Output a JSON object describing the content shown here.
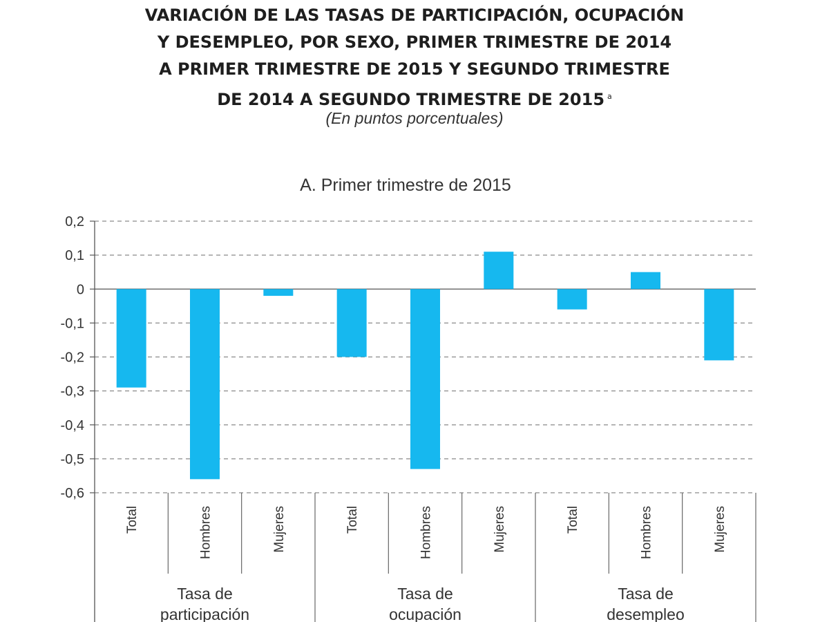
{
  "header": {
    "title_lines": [
      "VARIACIÓN DE LAS TASAS DE PARTICIPACIÓN, OCUPACIÓN",
      "Y DESEMPLEO, POR SEXO, PRIMER TRIMESTRE DE 2014",
      "A PRIMER TRIMESTRE DE 2015 Y SEGUNDO TRIMESTRE",
      "DE 2014 A SEGUNDO TRIMESTRE DE 2015"
    ],
    "title_note": "a",
    "subtitle": "(En puntos porcentuales)"
  },
  "chart_data": {
    "type": "bar",
    "title": "A. Primer trimestre de 2015",
    "categories": [
      "Total",
      "Hombres",
      "Mujeres",
      "Total",
      "Hombres",
      "Mujeres",
      "Total",
      "Hombres",
      "Mujeres"
    ],
    "groups": [
      {
        "label_lines": [
          "Tasa de",
          "participación"
        ],
        "span": 3
      },
      {
        "label_lines": [
          "Tasa de",
          "ocupación"
        ],
        "span": 3
      },
      {
        "label_lines": [
          "Tasa de",
          "desempleo"
        ],
        "span": 3
      }
    ],
    "values": [
      -0.29,
      -0.56,
      -0.02,
      -0.2,
      -0.53,
      0.11,
      -0.06,
      0.05,
      -0.21
    ],
    "ylim": [
      -0.6,
      0.2
    ],
    "yticks": [
      0.2,
      0.1,
      0,
      -0.1,
      -0.2,
      -0.3,
      -0.4,
      -0.5,
      -0.6
    ],
    "ytick_labels": [
      "0,2",
      "0,1",
      "0",
      "-0,1",
      "-0,2",
      "-0,3",
      "-0,4",
      "-0,5",
      "-0,6"
    ],
    "grid": true,
    "bar_color": "#16b8ef"
  }
}
